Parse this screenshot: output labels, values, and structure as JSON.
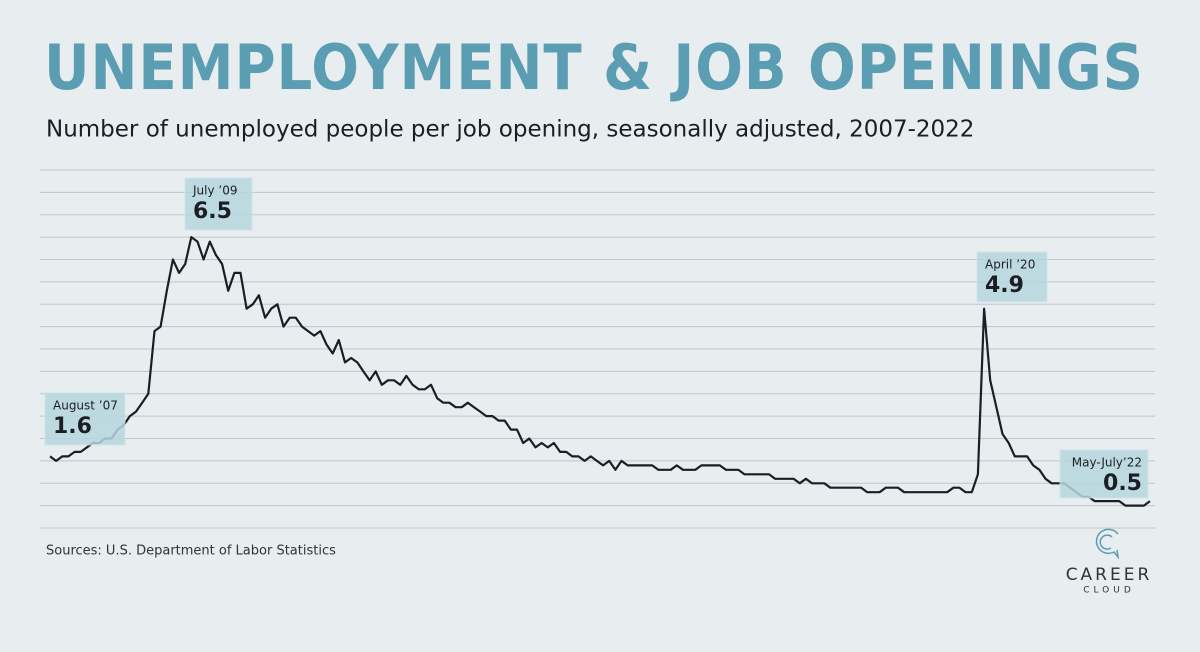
{
  "chart_data": {
    "type": "line",
    "title": "UNEMPLOYMENT & JOB OPENINGS",
    "subtitle": "Number of unemployed people per job opening, seasonally adjusted, 2007-2022",
    "color": "#1b1f24",
    "values": [
      1.6,
      1.5,
      1.6,
      1.6,
      1.7,
      1.7,
      1.8,
      1.9,
      1.9,
      2.0,
      2.0,
      2.2,
      2.3,
      2.5,
      2.6,
      2.8,
      3.0,
      4.4,
      4.5,
      5.3,
      6.0,
      5.7,
      5.9,
      6.5,
      6.4,
      6.0,
      6.4,
      6.1,
      5.9,
      5.3,
      5.7,
      5.7,
      4.9,
      5.0,
      5.2,
      4.7,
      4.9,
      5.0,
      4.5,
      4.7,
      4.7,
      4.5,
      4.4,
      4.3,
      4.4,
      4.1,
      3.9,
      4.2,
      3.7,
      3.8,
      3.7,
      3.5,
      3.3,
      3.5,
      3.2,
      3.3,
      3.3,
      3.2,
      3.4,
      3.2,
      3.1,
      3.1,
      3.2,
      2.9,
      2.8,
      2.8,
      2.7,
      2.7,
      2.8,
      2.7,
      2.6,
      2.5,
      2.5,
      2.4,
      2.4,
      2.2,
      2.2,
      1.9,
      2.0,
      1.8,
      1.9,
      1.8,
      1.9,
      1.7,
      1.7,
      1.6,
      1.6,
      1.5,
      1.6,
      1.5,
      1.4,
      1.5,
      1.3,
      1.5,
      1.4,
      1.4,
      1.4,
      1.4,
      1.4,
      1.3,
      1.3,
      1.3,
      1.4,
      1.3,
      1.3,
      1.3,
      1.4,
      1.4,
      1.4,
      1.4,
      1.3,
      1.3,
      1.3,
      1.2,
      1.2,
      1.2,
      1.2,
      1.2,
      1.1,
      1.1,
      1.1,
      1.1,
      1.0,
      1.1,
      1.0,
      1.0,
      1.0,
      0.9,
      0.9,
      0.9,
      0.9,
      0.9,
      0.9,
      0.8,
      0.8,
      0.8,
      0.9,
      0.9,
      0.9,
      0.8,
      0.8,
      0.8,
      0.8,
      0.8,
      0.8,
      0.8,
      0.8,
      0.9,
      0.9,
      0.8,
      0.8,
      1.2,
      4.9,
      3.3,
      2.7,
      2.1,
      1.9,
      1.6,
      1.6,
      1.6,
      1.4,
      1.3,
      1.1,
      1.0,
      1.0,
      1.0,
      0.9,
      0.8,
      0.7,
      0.7,
      0.6,
      0.6,
      0.6,
      0.6,
      0.6,
      0.5,
      0.5,
      0.5,
      0.5,
      0.6
    ],
    "ylim": [
      0,
      8
    ],
    "yticks": [
      0,
      0.5,
      1,
      1.5,
      2,
      2.5,
      3,
      3.5,
      4,
      4.5,
      5,
      5.5,
      6,
      6.5,
      7,
      7.5,
      8
    ],
    "grid": true,
    "annotations": [
      {
        "label": "August ’07",
        "value": 1.6
      },
      {
        "label": "July ’09",
        "value": 6.5
      },
      {
        "label": "April ’20",
        "value": 4.9
      },
      {
        "label": "May-July’22",
        "value": 0.5
      }
    ],
    "source": "Sources: U.S. Department of Labor Statistics"
  },
  "logo": {
    "name": "CAREER",
    "sub": "CLOUD"
  }
}
